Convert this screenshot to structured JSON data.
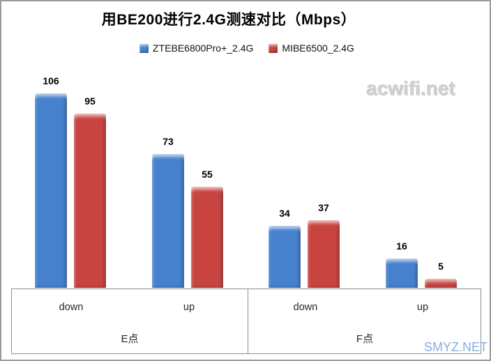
{
  "page": {
    "watermark_top_right": "acwifi.net",
    "watermark_bottom_right": "SMYZ.NET"
  },
  "chart_data": {
    "type": "bar",
    "title": "用BE200进行2.4G测速对比（Mbps）",
    "legend_position": "top",
    "gridlines": false,
    "value_labels_shown": true,
    "ylabel": "",
    "xlabel": "",
    "ylim": [
      0,
      115
    ],
    "group_labels": [
      "E点",
      "F点"
    ],
    "categories": [
      "down",
      "up",
      "down",
      "up"
    ],
    "category_groups": [
      0,
      0,
      1,
      1
    ],
    "series": [
      {
        "name": "ZTEBE6800Pro+_2.4G",
        "color": "#4681CE",
        "values": [
          106,
          73,
          34,
          16
        ]
      },
      {
        "name": "MIBE6500_2.4G",
        "color": "#C84440",
        "values": [
          95,
          55,
          37,
          5
        ]
      }
    ]
  }
}
